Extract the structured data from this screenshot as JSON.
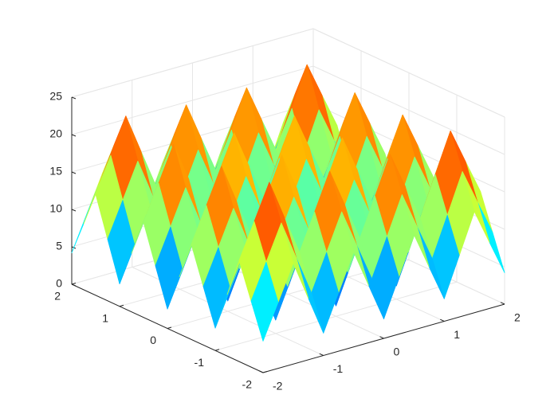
{
  "chart_data": {
    "type": "surface",
    "colormap": "jet",
    "grid": true,
    "x": [
      -2,
      -1.75,
      -1.5,
      -1.25,
      -1,
      -0.75,
      -0.5,
      -0.25,
      0,
      0.25,
      0.5,
      0.75,
      1,
      1.25,
      1.5,
      1.75,
      2
    ],
    "y": [
      -2,
      -1.75,
      -1.5,
      -1.25,
      -1,
      -0.75,
      -0.5,
      -0.25,
      0,
      0.25,
      0.5,
      0.75,
      1,
      1.25,
      1.5,
      1.75,
      2
    ],
    "z": [
      [
        4.2,
        8.825,
        13.5,
        8.225,
        3,
        7.825,
        12.7,
        7.625,
        2.6,
        7.625,
        12.7,
        7.825,
        3,
        8.225,
        13.5,
        8.825,
        4.2
      ],
      [
        8.825,
        13.45,
        18.125,
        12.85,
        7.625,
        12.45,
        17.325,
        12.25,
        7.225,
        12.25,
        17.325,
        12.45,
        7.625,
        12.85,
        18.125,
        13.45,
        8.825
      ],
      [
        13.5,
        18.125,
        22.8,
        17.525,
        12.3,
        17.125,
        22,
        16.925,
        11.9,
        16.925,
        22,
        17.125,
        12.3,
        17.525,
        22.8,
        18.125,
        13.5
      ],
      [
        8.225,
        12.85,
        17.525,
        12.25,
        7.025,
        11.85,
        16.725,
        11.65,
        6.625,
        11.65,
        16.725,
        11.85,
        7.025,
        12.25,
        17.525,
        12.85,
        8.225
      ],
      [
        3,
        7.625,
        12.3,
        7.025,
        1.8,
        6.625,
        11.5,
        6.425,
        1.4,
        6.425,
        11.5,
        6.625,
        1.8,
        7.025,
        12.3,
        7.625,
        3
      ],
      [
        7.825,
        12.45,
        17.125,
        11.85,
        6.625,
        11.45,
        16.325,
        11.25,
        6.225,
        11.25,
        16.325,
        11.45,
        6.625,
        11.85,
        17.125,
        12.45,
        7.825
      ],
      [
        12.7,
        17.325,
        22,
        16.725,
        11.5,
        16.325,
        21.2,
        16.125,
        11.1,
        16.125,
        21.2,
        16.325,
        11.5,
        16.725,
        22,
        17.325,
        12.7
      ],
      [
        7.625,
        12.25,
        16.925,
        11.65,
        6.425,
        11.25,
        16.125,
        11.05,
        6.025,
        11.05,
        16.125,
        11.25,
        6.425,
        11.65,
        16.925,
        12.25,
        7.625
      ],
      [
        2.6,
        7.225,
        11.9,
        6.625,
        1.4,
        6.225,
        11.1,
        6.025,
        1,
        6.025,
        11.1,
        6.225,
        1.4,
        6.625,
        11.9,
        7.225,
        2.6
      ],
      [
        7.625,
        12.25,
        16.925,
        11.65,
        6.425,
        11.25,
        16.125,
        11.05,
        6.025,
        11.05,
        16.125,
        11.25,
        6.425,
        11.65,
        16.925,
        12.25,
        7.625
      ],
      [
        12.7,
        17.325,
        22,
        16.725,
        11.5,
        16.325,
        21.2,
        16.125,
        11.1,
        16.125,
        21.2,
        16.325,
        11.5,
        16.725,
        22,
        17.325,
        12.7
      ],
      [
        7.825,
        12.45,
        17.125,
        11.85,
        6.625,
        11.45,
        16.325,
        11.25,
        6.225,
        11.25,
        16.325,
        11.45,
        6.625,
        11.85,
        17.125,
        12.45,
        7.825
      ],
      [
        3,
        7.625,
        12.3,
        7.025,
        1.8,
        6.625,
        11.5,
        6.425,
        1.4,
        6.425,
        11.5,
        6.625,
        1.8,
        7.025,
        12.3,
        7.625,
        3
      ],
      [
        8.225,
        12.85,
        17.525,
        12.25,
        7.025,
        11.85,
        16.725,
        11.65,
        6.625,
        11.65,
        16.725,
        11.85,
        7.025,
        12.25,
        17.525,
        12.85,
        8.225
      ],
      [
        13.5,
        18.125,
        22.8,
        17.525,
        12.3,
        17.125,
        22,
        16.925,
        11.9,
        16.925,
        22,
        17.125,
        12.3,
        17.525,
        22.8,
        18.125,
        13.5
      ],
      [
        8.825,
        13.45,
        18.125,
        12.85,
        7.625,
        12.45,
        17.325,
        12.25,
        7.225,
        12.25,
        17.325,
        12.45,
        7.625,
        12.85,
        18.125,
        13.45,
        8.825
      ],
      [
        4.2,
        8.825,
        13.5,
        8.225,
        3,
        7.825,
        12.7,
        7.625,
        2.6,
        7.625,
        12.7,
        7.825,
        3,
        8.225,
        13.5,
        8.825,
        4.2
      ]
    ],
    "xlim": [
      -2,
      2
    ],
    "ylim": [
      -2,
      2
    ],
    "zlim": [
      0,
      25
    ],
    "xticks": [
      -2,
      -1,
      0,
      1,
      2
    ],
    "yticks": [
      -2,
      -1,
      0,
      1,
      2
    ],
    "zticks": [
      0,
      5,
      10,
      15,
      20,
      25
    ]
  }
}
